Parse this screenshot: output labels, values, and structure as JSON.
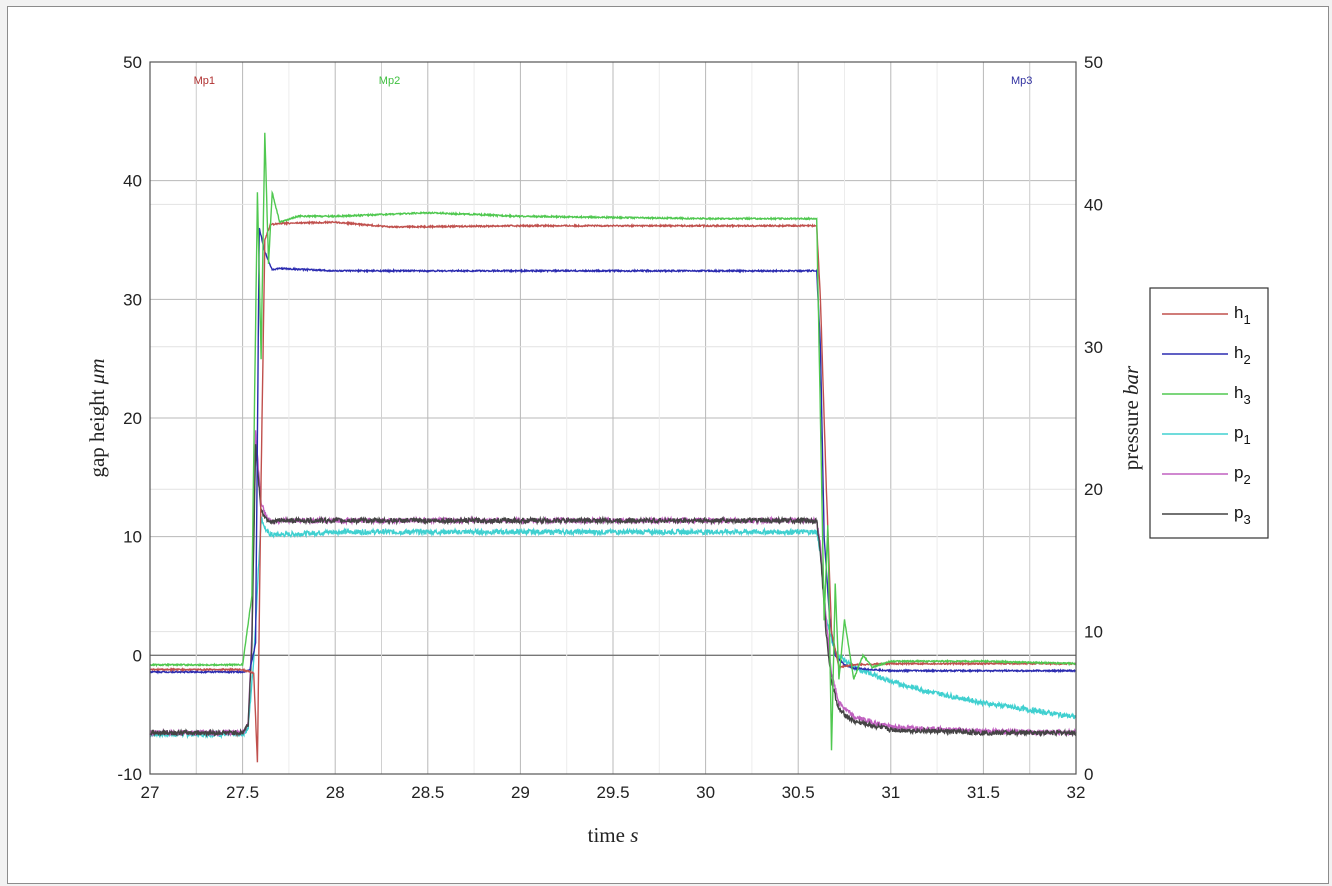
{
  "chart_data": {
    "type": "line",
    "xlabel": "time",
    "xlabel_unit": "s",
    "ylabel_left": "gap height",
    "ylabel_left_unit": "μm",
    "ylabel_right": "pressure",
    "ylabel_right_unit": "bar",
    "xlim": [
      27,
      32
    ],
    "ylim_left": [
      -10,
      50
    ],
    "ylim_right": [
      0,
      50
    ],
    "x_ticks": [
      "27",
      "27.5",
      "28",
      "28.5",
      "29",
      "29.5",
      "30",
      "30.5",
      "31",
      "31.5",
      "32"
    ],
    "y_ticks_left": [
      "-10",
      "0",
      "10",
      "20",
      "30",
      "40",
      "50"
    ],
    "y_ticks_right": [
      "0",
      "10",
      "20",
      "30",
      "40",
      "50"
    ],
    "grid": true,
    "legend_position": "right",
    "markers": [
      {
        "label": "Mp1",
        "x": 27.25,
        "color": "#b03030"
      },
      {
        "label": "Mp2",
        "x": 28.25,
        "color": "#40c040"
      },
      {
        "label": "Mp3",
        "x": 31.75,
        "color": "#3030a0"
      }
    ],
    "series": [
      {
        "name": "h",
        "sub": "1",
        "axis": "left",
        "color": "#c0504d",
        "x": [
          27,
          27.5,
          27.56,
          27.58,
          27.6,
          27.62,
          27.65,
          27.7,
          28,
          28.3,
          29,
          30,
          30.6,
          30.62,
          30.65,
          30.68,
          30.72,
          30.8,
          31,
          31.5,
          32
        ],
        "y": [
          -1.2,
          -1.2,
          -1.5,
          -9,
          15,
          35,
          36.3,
          36.4,
          36.5,
          36.1,
          36.2,
          36.2,
          36.2,
          30,
          15,
          2,
          -1,
          -0.8,
          -0.7,
          -0.7,
          -0.7
        ]
      },
      {
        "name": "h",
        "sub": "2",
        "axis": "left",
        "color": "#2b2bb0",
        "x": [
          27,
          27.5,
          27.54,
          27.57,
          27.59,
          27.62,
          27.66,
          27.7,
          28,
          29,
          30,
          30.6,
          30.62,
          30.64,
          30.67,
          30.7,
          30.75,
          30.8,
          31,
          31.5,
          32
        ],
        "y": [
          -1.4,
          -1.4,
          -1.2,
          1,
          36,
          34,
          32.5,
          32.6,
          32.4,
          32.4,
          32.4,
          32.4,
          26,
          10,
          3,
          0,
          -0.8,
          -1.1,
          -1.3,
          -1.3,
          -1.3
        ]
      },
      {
        "name": "h",
        "sub": "3",
        "axis": "left",
        "color": "#50c850",
        "x": [
          27,
          27.5,
          27.55,
          27.58,
          27.6,
          27.62,
          27.64,
          27.66,
          27.7,
          27.8,
          28,
          28.5,
          29,
          30,
          30.6,
          30.62,
          30.64,
          30.66,
          30.68,
          30.7,
          30.72,
          30.75,
          30.8,
          30.85,
          30.9,
          31,
          31.5,
          32
        ],
        "y": [
          -0.8,
          -0.8,
          5,
          39,
          25,
          44,
          33,
          39,
          36.5,
          37,
          37,
          37.3,
          37,
          36.8,
          36.8,
          20,
          3,
          11,
          -8,
          6,
          -2,
          3,
          -2,
          0,
          -1,
          -0.5,
          -0.5,
          -0.7
        ]
      },
      {
        "name": "p",
        "sub": "1",
        "axis": "right",
        "color": "#40d0d0",
        "x": [
          27,
          27.5,
          27.53,
          27.56,
          27.58,
          27.6,
          27.63,
          27.66,
          27.7,
          28,
          29,
          30,
          30.6,
          30.62,
          30.65,
          30.7,
          30.8,
          31,
          31.2,
          31.5,
          31.8,
          32
        ],
        "y": [
          2.8,
          2.8,
          3.2,
          8,
          13,
          18,
          17,
          16.8,
          16.8,
          17,
          17,
          17,
          17,
          15.5,
          11,
          8.5,
          7.5,
          6.5,
          5.8,
          5,
          4.4,
          4
        ]
      },
      {
        "name": "p",
        "sub": "2",
        "axis": "right",
        "color": "#c060c0",
        "x": [
          27,
          27.5,
          27.53,
          27.55,
          27.57,
          27.6,
          27.63,
          27.66,
          27.7,
          28,
          29,
          30,
          30.6,
          30.62,
          30.65,
          30.68,
          30.72,
          30.8,
          31,
          31.5,
          32
        ],
        "y": [
          2.9,
          2.9,
          3.5,
          10,
          24,
          19,
          18,
          17.7,
          17.8,
          17.8,
          17.8,
          17.8,
          17.8,
          16,
          11,
          7,
          5,
          4,
          3.3,
          3,
          2.9
        ]
      },
      {
        "name": "p",
        "sub": "3",
        "axis": "right",
        "color": "#444444",
        "x": [
          27,
          27.5,
          27.53,
          27.55,
          27.57,
          27.6,
          27.63,
          27.66,
          27.7,
          28,
          29,
          30,
          30.6,
          30.62,
          30.65,
          30.68,
          30.72,
          30.8,
          31,
          31.5,
          32
        ],
        "y": [
          2.9,
          2.9,
          3.5,
          9,
          23,
          18.5,
          17.9,
          17.7,
          17.8,
          17.8,
          17.8,
          17.8,
          17.8,
          15.5,
          10,
          6.5,
          4.5,
          3.7,
          3.1,
          2.9,
          2.9
        ]
      }
    ]
  }
}
